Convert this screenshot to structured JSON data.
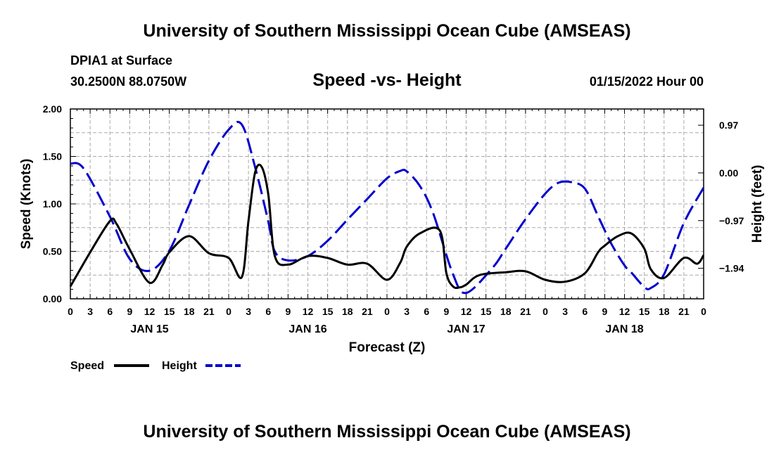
{
  "header": {
    "title": "University of Southern Mississippi Ocean Cube (AMSEAS)",
    "station": "DPIA1 at Surface",
    "coords": "30.2500N  88.0750W",
    "plot_title": "Speed -vs- Height",
    "datetime": "01/15/2022 Hour 00"
  },
  "footer": {
    "title": "University of Southern Mississippi Ocean Cube (AMSEAS)"
  },
  "chart_data": {
    "type": "line",
    "title": "Speed -vs- Height",
    "xlabel": "Forecast (Z)",
    "ylabel": "Speed (Knots)",
    "y2label": "Height (feet)",
    "xlim": [
      0,
      96
    ],
    "ylim": [
      0,
      2
    ],
    "y2lim": [
      -2.56,
      1.3
    ],
    "x_tick_labels": [
      "0",
      "3",
      "6",
      "9",
      "12",
      "15",
      "18",
      "21",
      "0",
      "3",
      "6",
      "9",
      "12",
      "15",
      "18",
      "21",
      "0",
      "3",
      "6",
      "9",
      "12",
      "15",
      "18",
      "21",
      "0",
      "3",
      "6",
      "9",
      "12",
      "15",
      "18",
      "21",
      "0"
    ],
    "day_labels": [
      {
        "x": 12,
        "label": "JAN 15"
      },
      {
        "x": 36,
        "label": "JAN 16"
      },
      {
        "x": 60,
        "label": "JAN 17"
      },
      {
        "x": 84,
        "label": "JAN 18"
      }
    ],
    "y_ticks": [
      {
        "value": 0,
        "label": "0.00"
      },
      {
        "value": 0.5,
        "label": "0.50"
      },
      {
        "value": 1.0,
        "label": "1.00"
      },
      {
        "value": 1.5,
        "label": "1.50"
      },
      {
        "value": 2.0,
        "label": "2.00"
      }
    ],
    "y2_ticks": [
      {
        "value": 0.97,
        "label": "0.97"
      },
      {
        "value": 0.0,
        "label": "0.00"
      },
      {
        "value": -0.97,
        "label": "−0.97"
      },
      {
        "value": -1.94,
        "label": "−1.94"
      }
    ],
    "grid": true,
    "legend": "bottom-left",
    "series": [
      {
        "name": "Speed",
        "axis": "left",
        "color": "#000000",
        "dash": "solid",
        "x": [
          0,
          3,
          6,
          7,
          9,
          12,
          14,
          15,
          18,
          21,
          24,
          26,
          27,
          28,
          29,
          30,
          31,
          33,
          36,
          39,
          42,
          45,
          48,
          50,
          51,
          53,
          56,
          57,
          58,
          59,
          60,
          62,
          66,
          69,
          72,
          75,
          78,
          80,
          81,
          83,
          85,
          87,
          88,
          90,
          93,
          95,
          96
        ],
        "y": [
          0.13,
          0.49,
          0.82,
          0.79,
          0.52,
          0.17,
          0.36,
          0.49,
          0.66,
          0.48,
          0.43,
          0.23,
          0.82,
          1.33,
          1.39,
          1.1,
          0.45,
          0.36,
          0.45,
          0.43,
          0.36,
          0.37,
          0.2,
          0.38,
          0.55,
          0.69,
          0.72,
          0.27,
          0.13,
          0.12,
          0.15,
          0.25,
          0.28,
          0.29,
          0.2,
          0.18,
          0.27,
          0.49,
          0.56,
          0.66,
          0.69,
          0.53,
          0.31,
          0.22,
          0.43,
          0.37,
          0.46
        ]
      },
      {
        "name": "Height",
        "axis": "right",
        "color": "#0000cc",
        "dash": "dashed",
        "x": [
          0,
          2,
          6,
          9,
          12,
          15,
          18,
          21,
          24,
          26,
          28,
          30,
          31,
          33,
          36,
          39,
          42,
          45,
          48,
          50,
          51,
          53,
          55,
          58,
          60,
          64,
          66,
          69,
          72,
          74,
          76,
          78,
          80,
          82,
          84,
          85,
          87,
          88,
          90,
          93,
          96
        ],
        "y": [
          0.19,
          0.09,
          -0.89,
          -1.75,
          -1.99,
          -1.58,
          -0.65,
          0.25,
          0.88,
          0.98,
          0.12,
          -0.99,
          -1.6,
          -1.78,
          -1.69,
          -1.38,
          -0.95,
          -0.53,
          -0.11,
          0.04,
          0.03,
          -0.27,
          -0.82,
          -2.06,
          -2.44,
          -1.93,
          -1.54,
          -0.94,
          -0.42,
          -0.2,
          -0.19,
          -0.32,
          -0.88,
          -1.44,
          -1.88,
          -2.02,
          -2.32,
          -2.34,
          -2.06,
          -1.02,
          -0.3
        ]
      }
    ]
  }
}
